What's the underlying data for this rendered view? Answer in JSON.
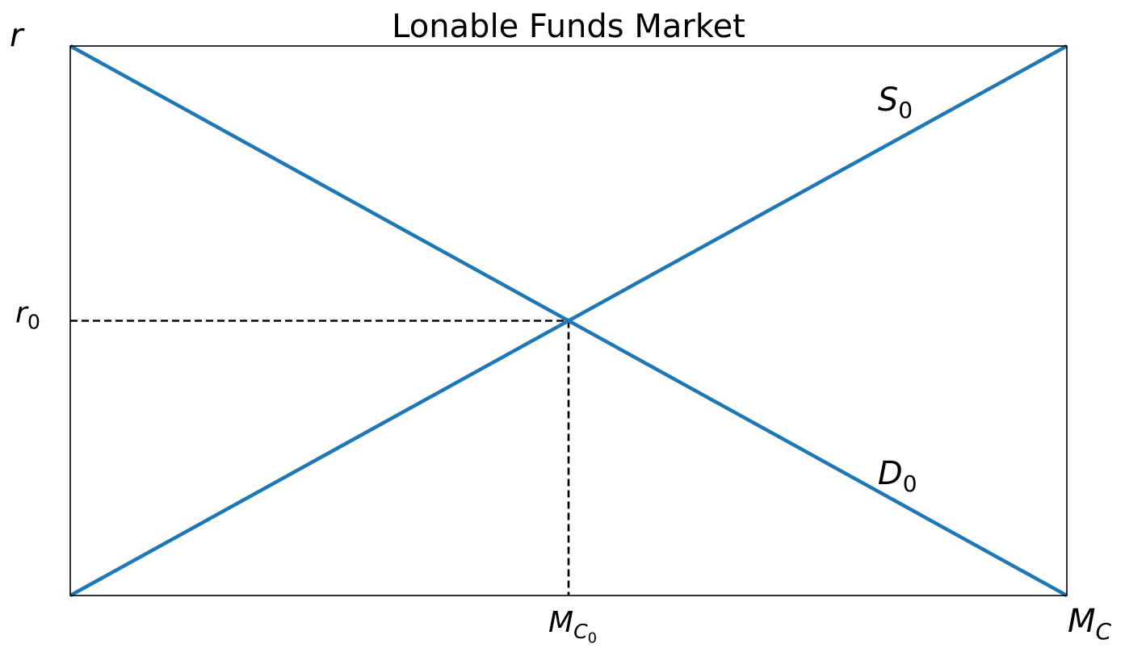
{
  "chart_data": {
    "type": "line",
    "title": "Lonable Funds Market",
    "xlabel": {
      "main": "M",
      "sub": "C"
    },
    "ylabel": {
      "main": "r",
      "sub": ""
    },
    "xlim": [
      0,
      1
    ],
    "ylim": [
      0,
      1
    ],
    "grid": false,
    "legend": "none",
    "series": [
      {
        "name": "S",
        "name_sub": "0",
        "x": [
          0,
          1
        ],
        "y": [
          0,
          1
        ],
        "label_pos": [
          0.82,
          0.9
        ],
        "color": "#1f77b4"
      },
      {
        "name": "D",
        "name_sub": "0",
        "x": [
          0,
          1
        ],
        "y": [
          1,
          0
        ],
        "label_pos": [
          0.82,
          0.22
        ],
        "color": "#1f77b4"
      }
    ],
    "equilibrium": {
      "x": 0.5,
      "y": 0.5,
      "x_tick": {
        "main": "M",
        "sub": "C",
        "subsub": "0"
      },
      "y_tick": {
        "main": "r",
        "sub": "0"
      }
    }
  }
}
